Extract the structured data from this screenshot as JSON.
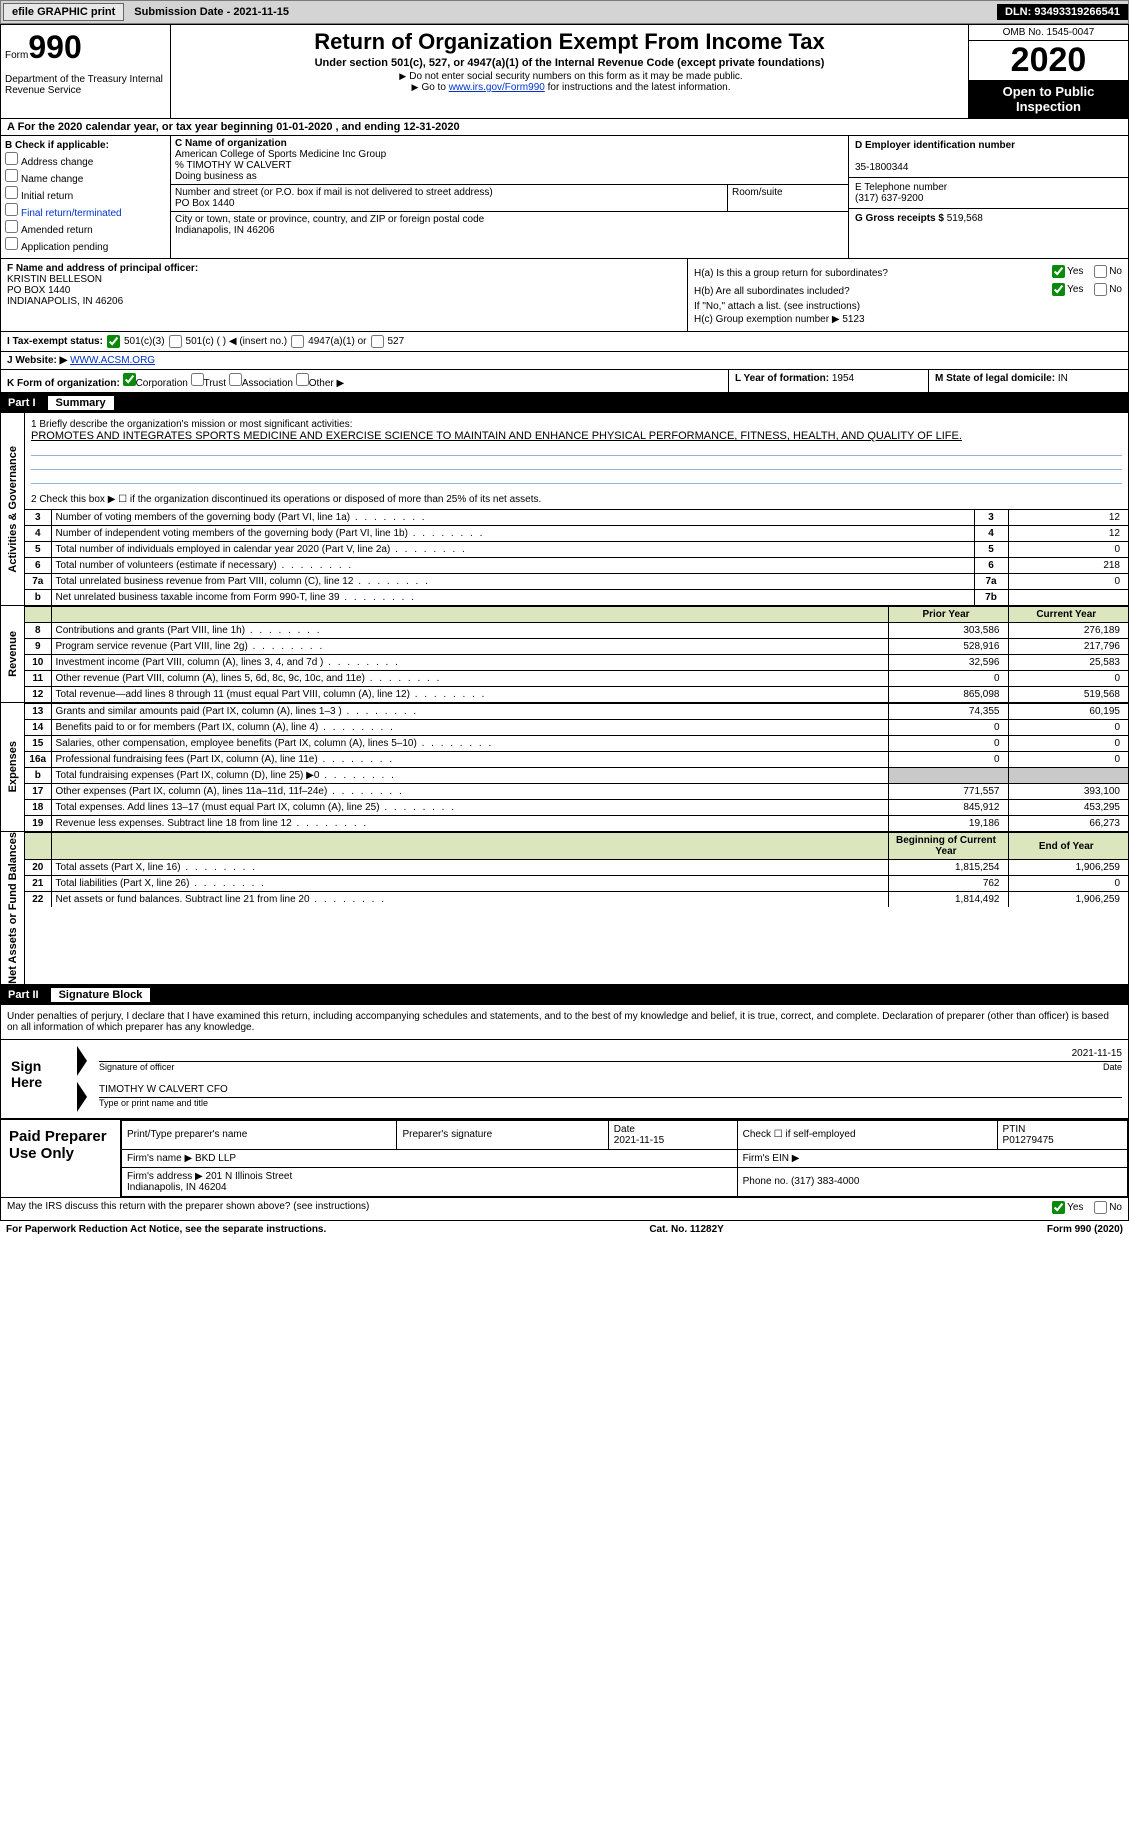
{
  "topbar": {
    "efile_label": "efile GRAPHIC print",
    "submission_label": "Submission Date - 2021-11-15",
    "dln_label": "DLN: 93493319266541"
  },
  "header": {
    "form_word": "Form",
    "form_number": "990",
    "dept": "Department of the Treasury\nInternal Revenue Service",
    "title": "Return of Organization Exempt From Income Tax",
    "subtitle": "Under section 501(c), 527, or 4947(a)(1) of the Internal Revenue Code (except private foundations)",
    "note1": "Do not enter social security numbers on this form as it may be made public.",
    "note2_a": "Go to ",
    "note2_link": "www.irs.gov/Form990",
    "note2_b": " for instructions and the latest information.",
    "omb": "OMB No. 1545-0047",
    "year": "2020",
    "inspection": "Open to Public Inspection"
  },
  "line_a": "A For the 2020 calendar year, or tax year beginning 01-01-2020   , and ending 12-31-2020",
  "col_b": {
    "header": "B Check if applicable:",
    "opts": [
      "Address change",
      "Name change",
      "Initial return",
      "Final return/terminated",
      "Amended return",
      "Application pending"
    ]
  },
  "col_c": {
    "name_lbl": "C Name of organization",
    "name": "American College of Sports Medicine Inc Group",
    "care_of": "% TIMOTHY W CALVERT",
    "dba_lbl": "Doing business as",
    "dba": "",
    "street_lbl": "Number and street (or P.O. box if mail is not delivered to street address)",
    "room_lbl": "Room/suite",
    "street": "PO Box 1440",
    "city_lbl": "City or town, state or province, country, and ZIP or foreign postal code",
    "city": "Indianapolis, IN  46206"
  },
  "col_d": {
    "ein_lbl": "D Employer identification number",
    "ein": "35-1800344",
    "phone_lbl": "E Telephone number",
    "phone": "(317) 637-9200",
    "gross_lbl": "G Gross receipts $",
    "gross": "519,568"
  },
  "section_f": {
    "lbl": "F Name and address of principal officer:",
    "name": "KRISTIN BELLESON",
    "addr1": "PO BOX 1440",
    "addr2": "INDIANAPOLIS, IN  46206"
  },
  "section_h": {
    "ha": "H(a)  Is this a group return for subordinates?",
    "hb": "H(b)  Are all subordinates included?",
    "hb_note": "If \"No,\" attach a list. (see instructions)",
    "hc": "H(c)  Group exemption number",
    "hc_val": "5123",
    "yes": "Yes",
    "no": "No"
  },
  "line_i": {
    "lbl": "I   Tax-exempt status:",
    "opts": [
      "501(c)(3)",
      "501(c) (  )  ◀ (insert no.)",
      "4947(a)(1) or",
      "527"
    ]
  },
  "line_j": {
    "lbl": "J   Website: ▶",
    "val": "WWW.ACSM.ORG"
  },
  "line_k": {
    "lbl": "K Form of organization:",
    "opts": [
      "Corporation",
      "Trust",
      "Association",
      "Other ▶"
    ],
    "l_lbl": "L Year of formation:",
    "l_val": "1954",
    "m_lbl": "M State of legal domicile:",
    "m_val": "IN"
  },
  "part1": {
    "hdr_num": "Part I",
    "hdr_title": "Summary",
    "side_labels": [
      "Activities & Governance",
      "Revenue",
      "Expenses",
      "Net Assets or Fund Balances"
    ],
    "q1_lbl": "1  Briefly describe the organization's mission or most significant activities:",
    "q1_val": "PROMOTES AND INTEGRATES SPORTS MEDICINE AND EXERCISE SCIENCE TO MAINTAIN AND ENHANCE PHYSICAL PERFORMANCE, FITNESS, HEALTH, AND QUALITY OF LIFE.",
    "q2": "2  Check this box ▶ ☐  if the organization discontinued its operations or disposed of more than 25% of its net assets.",
    "governance_rows": [
      {
        "n": "3",
        "lbl": "Number of voting members of the governing body (Part VI, line 1a)",
        "box": "3",
        "val": "12"
      },
      {
        "n": "4",
        "lbl": "Number of independent voting members of the governing body (Part VI, line 1b)",
        "box": "4",
        "val": "12"
      },
      {
        "n": "5",
        "lbl": "Total number of individuals employed in calendar year 2020 (Part V, line 2a)",
        "box": "5",
        "val": "0"
      },
      {
        "n": "6",
        "lbl": "Total number of volunteers (estimate if necessary)",
        "box": "6",
        "val": "218"
      },
      {
        "n": "7a",
        "lbl": "Total unrelated business revenue from Part VIII, column (C), line 12",
        "box": "7a",
        "val": "0"
      },
      {
        "n": "b",
        "lbl": "Net unrelated business taxable income from Form 990-T, line 39",
        "box": "7b",
        "val": ""
      }
    ],
    "col_hdrs": {
      "prior": "Prior Year",
      "current": "Current Year",
      "boy": "Beginning of Current Year",
      "eoy": "End of Year"
    },
    "revenue_rows": [
      {
        "n": "8",
        "lbl": "Contributions and grants (Part VIII, line 1h)",
        "p": "303,586",
        "c": "276,189"
      },
      {
        "n": "9",
        "lbl": "Program service revenue (Part VIII, line 2g)",
        "p": "528,916",
        "c": "217,796"
      },
      {
        "n": "10",
        "lbl": "Investment income (Part VIII, column (A), lines 3, 4, and 7d )",
        "p": "32,596",
        "c": "25,583"
      },
      {
        "n": "11",
        "lbl": "Other revenue (Part VIII, column (A), lines 5, 6d, 8c, 9c, 10c, and 11e)",
        "p": "0",
        "c": "0"
      },
      {
        "n": "12",
        "lbl": "Total revenue—add lines 8 through 11 (must equal Part VIII, column (A), line 12)",
        "p": "865,098",
        "c": "519,568"
      }
    ],
    "expense_rows": [
      {
        "n": "13",
        "lbl": "Grants and similar amounts paid (Part IX, column (A), lines 1–3 )",
        "p": "74,355",
        "c": "60,195"
      },
      {
        "n": "14",
        "lbl": "Benefits paid to or for members (Part IX, column (A), line 4)",
        "p": "0",
        "c": "0"
      },
      {
        "n": "15",
        "lbl": "Salaries, other compensation, employee benefits (Part IX, column (A), lines 5–10)",
        "p": "0",
        "c": "0"
      },
      {
        "n": "16a",
        "lbl": "Professional fundraising fees (Part IX, column (A), line 11e)",
        "p": "0",
        "c": "0"
      },
      {
        "n": "b",
        "lbl": "Total fundraising expenses (Part IX, column (D), line 25) ▶0",
        "p": "",
        "c": "",
        "shade": true
      },
      {
        "n": "17",
        "lbl": "Other expenses (Part IX, column (A), lines 11a–11d, 11f–24e)",
        "p": "771,557",
        "c": "393,100"
      },
      {
        "n": "18",
        "lbl": "Total expenses. Add lines 13–17 (must equal Part IX, column (A), line 25)",
        "p": "845,912",
        "c": "453,295"
      },
      {
        "n": "19",
        "lbl": "Revenue less expenses. Subtract line 18 from line 12",
        "p": "19,186",
        "c": "66,273"
      }
    ],
    "net_rows": [
      {
        "n": "20",
        "lbl": "Total assets (Part X, line 16)",
        "p": "1,815,254",
        "c": "1,906,259"
      },
      {
        "n": "21",
        "lbl": "Total liabilities (Part X, line 26)",
        "p": "762",
        "c": "0"
      },
      {
        "n": "22",
        "lbl": "Net assets or fund balances. Subtract line 21 from line 20",
        "p": "1,814,492",
        "c": "1,906,259"
      }
    ]
  },
  "part2": {
    "hdr_num": "Part II",
    "hdr_title": "Signature Block",
    "penalty": "Under penalties of perjury, I declare that I have examined this return, including accompanying schedules and statements, and to the best of my knowledge and belief, it is true, correct, and complete. Declaration of preparer (other than officer) is based on all information of which preparer has any knowledge.",
    "sign_here": "Sign Here",
    "sig_officer_lbl": "Signature of officer",
    "sig_date": "2021-11-15",
    "date_lbl": "Date",
    "officer_name": "TIMOTHY W CALVERT CFO",
    "officer_name_lbl": "Type or print name and title",
    "paid_lbl": "Paid Preparer Use Only",
    "prep_name_lbl": "Print/Type preparer's name",
    "prep_sig_lbl": "Preparer's signature",
    "prep_date_lbl": "Date",
    "prep_date": "2021-11-15",
    "self_emp_lbl": "Check ☐ if self-employed",
    "ptin_lbl": "PTIN",
    "ptin": "P01279475",
    "firm_name_lbl": "Firm's name  ▶",
    "firm_name": "BKD LLP",
    "firm_ein_lbl": "Firm's EIN ▶",
    "firm_addr_lbl": "Firm's address ▶",
    "firm_addr": "201 N Illinois Street\nIndianapolis, IN  46204",
    "firm_phone_lbl": "Phone no.",
    "firm_phone": "(317) 383-4000",
    "discuss": "May the IRS discuss this return with the preparer shown above? (see instructions)",
    "yes": "Yes",
    "no": "No"
  },
  "footer": {
    "pra": "For Paperwork Reduction Act Notice, see the separate instructions.",
    "cat": "Cat. No. 11282Y",
    "form": "Form 990 (2020)"
  },
  "colors": {
    "accent": "#0033cc",
    "green": "#0a8a0a",
    "hdr_bg": "#dbe6bf",
    "shade": "#c9c9c9"
  }
}
